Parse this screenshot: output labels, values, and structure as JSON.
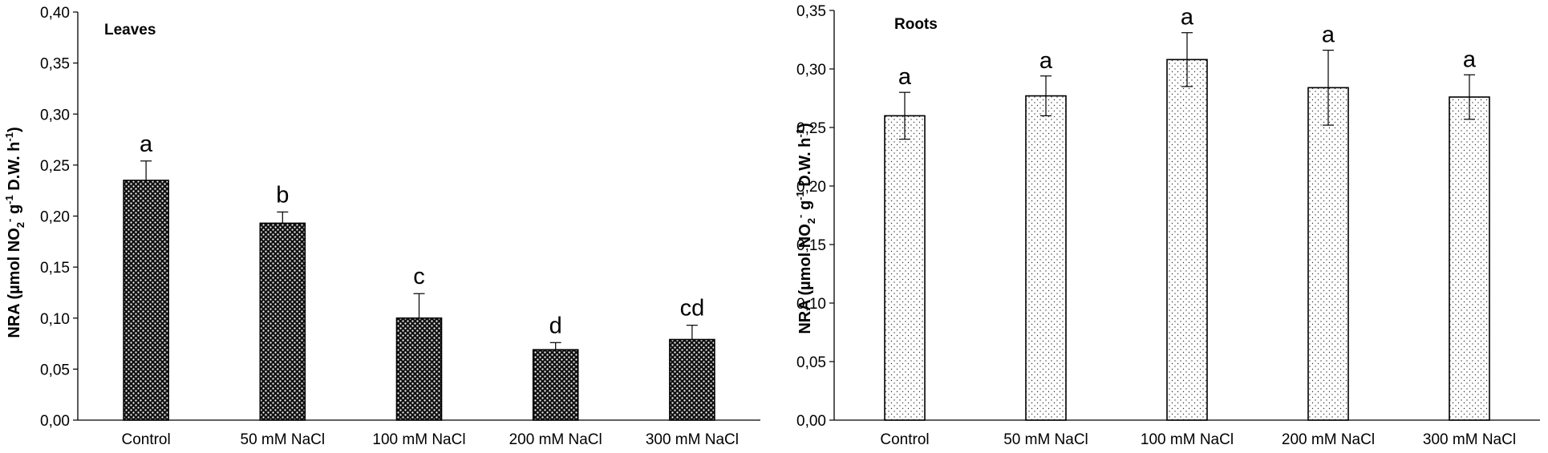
{
  "chart_data": [
    {
      "type": "bar",
      "title": "Leaves",
      "ylabel": "NRA (μmol NO2- g-1 D.W. h-1)",
      "ylabel_parts": {
        "a": "NRA (µmol NO",
        "b": "2",
        "c": "-",
        "d": " g",
        "e": "-1",
        "f": " D.W. h",
        "g": "-1",
        "h": ")"
      },
      "categories": [
        "Control",
        "50 mM NaCl",
        "100 mM NaCl",
        "200 mM NaCl",
        "300 mM NaCl"
      ],
      "values": [
        0.235,
        0.193,
        0.1,
        0.069,
        0.079
      ],
      "errors": [
        0.019,
        0.011,
        0.024,
        0.007,
        0.014
      ],
      "significance": [
        "a",
        "b",
        "c",
        "d",
        "cd"
      ],
      "ylim": [
        0,
        0.4
      ],
      "yticks": [
        "0,00",
        "0,05",
        "0,10",
        "0,15",
        "0,20",
        "0,25",
        "0,30",
        "0,35",
        "0,40"
      ],
      "colors": {
        "bar_fill": "#111111",
        "dot": "#ffffff",
        "error": "#000000"
      }
    },
    {
      "type": "bar",
      "title": "Roots",
      "ylabel": "NRA (μmol NO2- g-1 D.W. h-1)",
      "ylabel_parts": {
        "a": "NRA (µmol NO",
        "b": "2",
        "c": "-",
        "d": " g",
        "e": "-1",
        "f": " D.W. h",
        "g": "-1",
        "h": ")"
      },
      "categories": [
        "Control",
        "50 mM NaCl",
        "100 mM NaCl",
        "200 mM NaCl",
        "300 mM NaCl"
      ],
      "values": [
        0.26,
        0.277,
        0.308,
        0.284,
        0.276
      ],
      "errors": [
        0.02,
        0.017,
        0.023,
        0.032,
        0.019
      ],
      "significance": [
        "a",
        "a",
        "a",
        "a",
        "a"
      ],
      "ylim": [
        0,
        0.35
      ],
      "yticks": [
        "0,00",
        "0,05",
        "0,10",
        "0,15",
        "0,20",
        "0,25",
        "0,30",
        "0,35"
      ],
      "colors": {
        "bar_fill": "#ffffff",
        "dot": "#333333",
        "error": "#000000"
      }
    }
  ]
}
